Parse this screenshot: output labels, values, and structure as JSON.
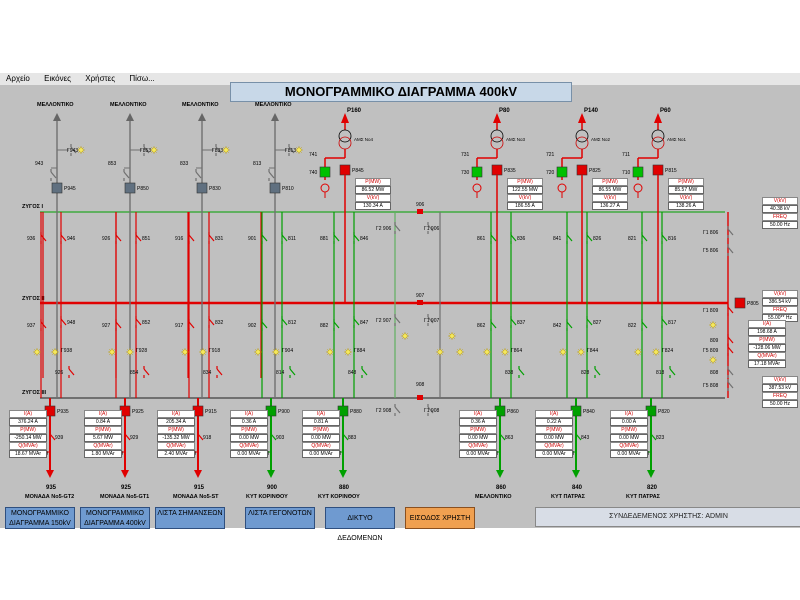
{
  "menu": [
    "Αρχείο",
    "Εικόνες",
    "Χρήστες",
    "Πίσω..."
  ],
  "title": "ΜΟΝΟΓΡΑΜΜΙΚΟ ΔΙΑΓΡΑΜΜΑ 400kV",
  "buses": [
    "ΖΥΓΟΣ I",
    "ΖΥΓΟΣ II",
    "ΖΥΓΟΣ III"
  ],
  "top_labels": [
    "ΜΕΛΛΟΝΤΙΚΟ",
    "ΜΕΛΛΟΝΤΙΚΟ",
    "ΜΕΛΛΟΝΤΙΚΟ",
    "ΜΕΛΛΟΝΤΙΚΟ"
  ],
  "top_disconnectors": [
    "Γ943",
    "Γ853",
    "Γ833",
    "Γ813"
  ],
  "top_switches": [
    "943",
    "853",
    "833",
    "813"
  ],
  "top_breakers": [
    "P945",
    "P850",
    "P830",
    "P810"
  ],
  "transformers": [
    {
      "power": "P160",
      "name": "ΑΜΣ No4",
      "sw": "741",
      "sw2": "740",
      "breaker": "P845",
      "meas": [
        "P(MW)",
        "86.52 MW",
        "V(kV)",
        "130.34 A"
      ]
    },
    {
      "power": "P80",
      "name": "ΑΜΣ No3",
      "sw": "731",
      "sw2": "730",
      "breaker": "P835",
      "meas": [
        "P(MW)",
        "122.55 MW",
        "V(kV)",
        "186.55 A"
      ]
    },
    {
      "power": "P140",
      "name": "ΑΜΣ No2",
      "sw": "721",
      "sw2": "720",
      "breaker": "P825",
      "meas": [
        "P(MW)",
        "86.55 MW",
        "V(kV)",
        "136.27 A"
      ]
    },
    {
      "power": "P60",
      "name": "ΑΜΣ No1",
      "sw": "711",
      "sw2": "710",
      "breaker": "P815",
      "meas": [
        "P(MW)",
        "85.57 MW",
        "V(kV)",
        "138.26 A"
      ]
    }
  ],
  "coupler_labels": [
    "906",
    "Γ2 906",
    "Γ1 906",
    "907",
    "Γ2 907",
    "Γ1 907",
    "908",
    "Γ2 908",
    "Γ1 908"
  ],
  "right_panel": {
    "bus1": {
      "sw": "Γ1 806",
      "sw2": "Γ5 806",
      "v_label": "V(kV)",
      "v": "40.38 kV",
      "f_label": "FREQ",
      "f": "50.00 Hz"
    },
    "bus2": {
      "breaker": "P805",
      "v_label": "V(kV)",
      "v": "386.54 kV",
      "f_label": "FREQ",
      "f": "55.00** Hz",
      "sw": "Γ1 809",
      "sw2": "Γ5 809",
      "sw3": "809",
      "meas": [
        "I(A)",
        "198.68 A",
        "P(MW)",
        "-128.06 MW",
        "Q(MVAr)",
        "17.18 MVAr"
      ]
    },
    "bus3": {
      "sw": "Γ5 808",
      "sw2": "808",
      "v_label": "V(kV)",
      "v": "387.53 kV",
      "f_label": "FREQ",
      "f": "50.00 Hz"
    }
  },
  "bays": [
    {
      "id": "935",
      "name": "ΜΟΝΑΔΑ No5-GT2",
      "breaker": "P935",
      "color": "#e00000",
      "meas": [
        "376.24 A",
        "-250.14 MW",
        "18.67 MVAr"
      ],
      "sw": [
        "936",
        "946",
        "937",
        "Γ938",
        "948",
        "926",
        "939",
        "Γ939"
      ]
    },
    {
      "id": "925",
      "name": "ΜΟΝΑΔΑ No5-GT1",
      "breaker": "P925",
      "color": "#e00000",
      "meas": [
        "0.84 A",
        "5.67 MW",
        "1.80 MVAr"
      ],
      "sw": [
        "926",
        "851",
        "927",
        "Γ928",
        "852",
        "854",
        "929",
        "Γ929"
      ]
    },
    {
      "id": "915",
      "name": "ΜΟΝΑΔΑ No5-ST",
      "breaker": "P915",
      "color": "#e00000",
      "meas": [
        "205.34 A",
        "-135.32 MW",
        "2.40 MVAr"
      ],
      "sw": [
        "916",
        "831",
        "917",
        "Γ918",
        "832",
        "834",
        "918",
        "Γ919"
      ]
    },
    {
      "id": "900",
      "name": "ΚΥΤ ΚΟΡΙΝΘΟΥ",
      "breaker": "P900",
      "color": "#00a000",
      "meas": [
        "0.36 A",
        "0.00 MW",
        "0.00 MVAr"
      ],
      "sw": [
        "901",
        "811",
        "902",
        "Γ904",
        "812",
        "814",
        "903",
        "Γ903"
      ]
    },
    {
      "id": "880",
      "name": "ΚΥΤ ΚΟΡΙΝΘΟΥ",
      "breaker": "P880",
      "color": "#00a000",
      "meas": [
        "0.81 A",
        "0.00 MW",
        "0.00 MVAr"
      ],
      "sw": [
        "881",
        "846",
        "882",
        "Γ884",
        "847",
        "848",
        "883",
        "Γ883"
      ]
    },
    {
      "id": "860",
      "name": "ΜΕΛΛΟΝΤΙΚΟ",
      "breaker": "P860",
      "color": "#00a000",
      "meas": [
        "0.36 A",
        "0.00 MW",
        "0.00 MVAr"
      ],
      "sw": [
        "861",
        "836",
        "862",
        "Γ864",
        "837",
        "838",
        "863",
        "Γ863"
      ]
    },
    {
      "id": "840",
      "name": "ΚΥΤ ΠΑΤΡΑΣ",
      "breaker": "P840",
      "color": "#00a000",
      "meas": [
        "0.22 A",
        "0.00 MW",
        "0.00 MVAr"
      ],
      "sw": [
        "841",
        "826",
        "842",
        "Γ844",
        "827",
        "828",
        "843",
        "Γ843"
      ]
    },
    {
      "id": "820",
      "name": "ΚΥΤ ΠΑΤΡΑΣ",
      "breaker": "P820",
      "color": "#00a000",
      "meas": [
        "0.00 A",
        "0.00 MW",
        "0.00 MVAr"
      ],
      "sw": [
        "821",
        "816",
        "822",
        "Γ824",
        "817",
        "818",
        "823",
        "Γ823"
      ]
    }
  ],
  "meas_labels": [
    "I(A)",
    "P(MW)",
    "Q(MVAr)"
  ],
  "nav_buttons": [
    "ΜΟΝΟΓΡΑΜΜΙΚΟ ΔΙΑΓΡΑΜΜΑ 150kV",
    "ΜΟΝΟΓΡΑΜΜΙΚΟ ΔΙΑΓΡΑΜΜΑ 400kV",
    "ΛΙΣΤΑ ΣΗΜΑΝΣΕΩΝ",
    "ΛΙΣΤΑ ΓΕΓΟΝΟΤΩΝ",
    "ΔΙΚΤΥΟ ΔΕΔΟΜΕΝΩΝ",
    "ΕΙΣΟΔΟΣ ΧΡΗΣΤΗ"
  ],
  "status": "ΣΥΝΔΕΔΕΜΕΝΟΣ ΧΡΗΣΤΗΣ: ADMIN",
  "colors": {
    "energized": "#e00000",
    "live_green": "#00a000",
    "dead": "#707070",
    "bus1": "#60b060",
    "bus2": "#e00000",
    "bus3": "#707070"
  }
}
